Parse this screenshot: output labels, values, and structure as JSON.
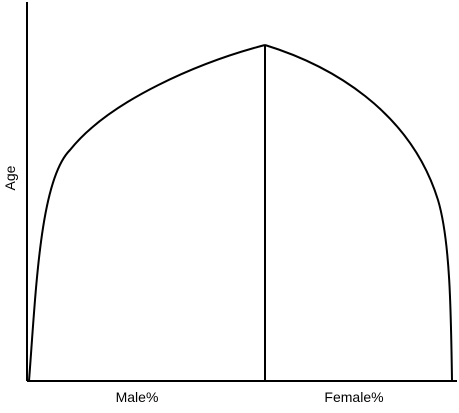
{
  "diagram": {
    "y_axis_label": "Age",
    "x_labels": {
      "left": "Male%",
      "right": "Female%"
    },
    "line_color": "#000000",
    "background_color": "#ffffff"
  }
}
